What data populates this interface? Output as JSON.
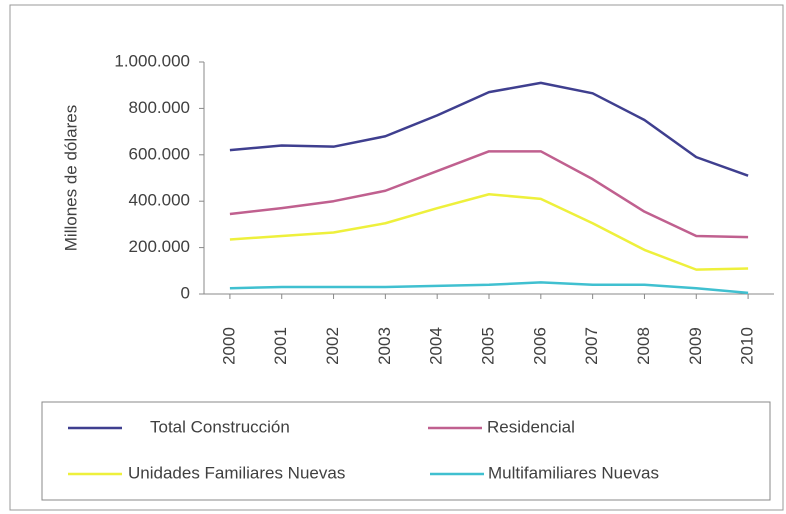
{
  "chart_data": {
    "type": "line",
    "y_label": "Millones de dólares",
    "categories": [
      "2000",
      "2001",
      "2002",
      "2003",
      "2004",
      "2005",
      "2006",
      "2007",
      "2008",
      "2009",
      "2010"
    ],
    "series": [
      {
        "name": "Total Construcción",
        "color": "#3f3f8f",
        "values": [
          620000,
          640000,
          635000,
          680000,
          770000,
          870000,
          910000,
          865000,
          750000,
          590000,
          510000
        ]
      },
      {
        "name": "Residencial",
        "color": "#c0608f",
        "values": [
          345000,
          370000,
          400000,
          445000,
          530000,
          615000,
          615000,
          495000,
          355000,
          250000,
          245000
        ]
      },
      {
        "name": "Unidades Familiares Nuevas",
        "color": "#eef03c",
        "values": [
          235000,
          250000,
          265000,
          305000,
          370000,
          430000,
          410000,
          305000,
          190000,
          105000,
          110000
        ]
      },
      {
        "name": "Multifamiliares Nuevas",
        "color": "#40c0d0",
        "values": [
          25000,
          30000,
          30000,
          30000,
          35000,
          40000,
          50000,
          40000,
          40000,
          25000,
          5000
        ]
      }
    ],
    "ylim": [
      0,
      1000000
    ],
    "yticks": [
      0,
      {
        "value": 200000,
        "label": "200.000"
      },
      {
        "value": 400000,
        "label": "400.000"
      },
      {
        "value": 600000,
        "label": "600.000"
      },
      {
        "value": 800000,
        "label": "800.000"
      },
      {
        "value": 1000000,
        "label": "1.000.000"
      }
    ],
    "legend": "bottom"
  }
}
